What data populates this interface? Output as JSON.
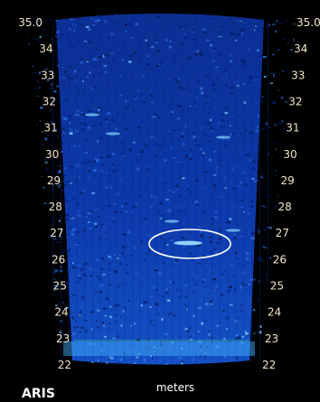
{
  "sonar": {
    "sensor_name": "ARIS",
    "units": "meters",
    "range_labels": [
      "35.0",
      "34",
      "33",
      "32",
      "31",
      "30",
      "29",
      "28",
      "27",
      "26",
      "25",
      "24",
      "23",
      "22"
    ],
    "colors": {
      "background": "#000000",
      "label": "#f2e6c9",
      "echo_base": "#0a2a8c",
      "echo_bright": "#39a8ff",
      "highlight_ring": "#ffffff",
      "caption": "#ffffff"
    }
  }
}
